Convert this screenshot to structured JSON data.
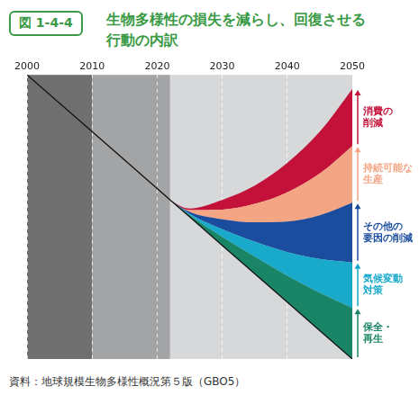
{
  "figure_label": "図 1-4-4",
  "title": "生物多様性の損失を減らし、回復させる行動の内訳",
  "source": "資料：地球規模生物多様性概況第５版（GBO5）",
  "chart_data": {
    "type": "area",
    "stacked": true,
    "x": [
      2000,
      2010,
      2020,
      2022,
      2025,
      2030,
      2035,
      2040,
      2045,
      2050
    ],
    "baseline": [
      100,
      80,
      60,
      56,
      50,
      40,
      30,
      20,
      10,
      0
    ],
    "series": [
      {
        "name": "保全・\n再生",
        "color": "#1a8466",
        "values": [
          0,
          0,
          0,
          0,
          0.6,
          3,
          6,
          9.3,
          13.3,
          18
        ]
      },
      {
        "name": "気候変動\n対策",
        "color": "#19a9cb",
        "values": [
          0,
          0,
          0,
          0,
          0.5,
          2.7,
          5.3,
          8.3,
          11.9,
          16
        ]
      },
      {
        "name": "その他の\n要因の削減",
        "color": "#1b4c9e",
        "values": [
          0,
          0,
          0,
          0,
          0.7,
          3.5,
          6.8,
          10.8,
          15.4,
          21
        ]
      },
      {
        "name": "持続可能な\n生産",
        "color": "#f4a584",
        "values": [
          0,
          0,
          0,
          0,
          0.6,
          3.4,
          6.5,
          10.3,
          14.7,
          20
        ]
      },
      {
        "name": "消費の\n削減",
        "color": "#c3113a",
        "values": [
          0,
          0,
          0,
          0,
          0.6,
          3.4,
          6.4,
          10.3,
          14.7,
          20
        ]
      }
    ],
    "xlim": [
      2000,
      2050
    ],
    "xticks": [
      2000,
      2010,
      2020,
      2030,
      2040,
      2050
    ],
    "ylim": [
      0,
      100
    ],
    "grid": true,
    "tick_labels": "x",
    "periods": [
      {
        "from": 2000,
        "to": 2010
      },
      {
        "from": 2010,
        "to": 2022
      },
      {
        "from": 2022,
        "to": 2050
      }
    ]
  }
}
